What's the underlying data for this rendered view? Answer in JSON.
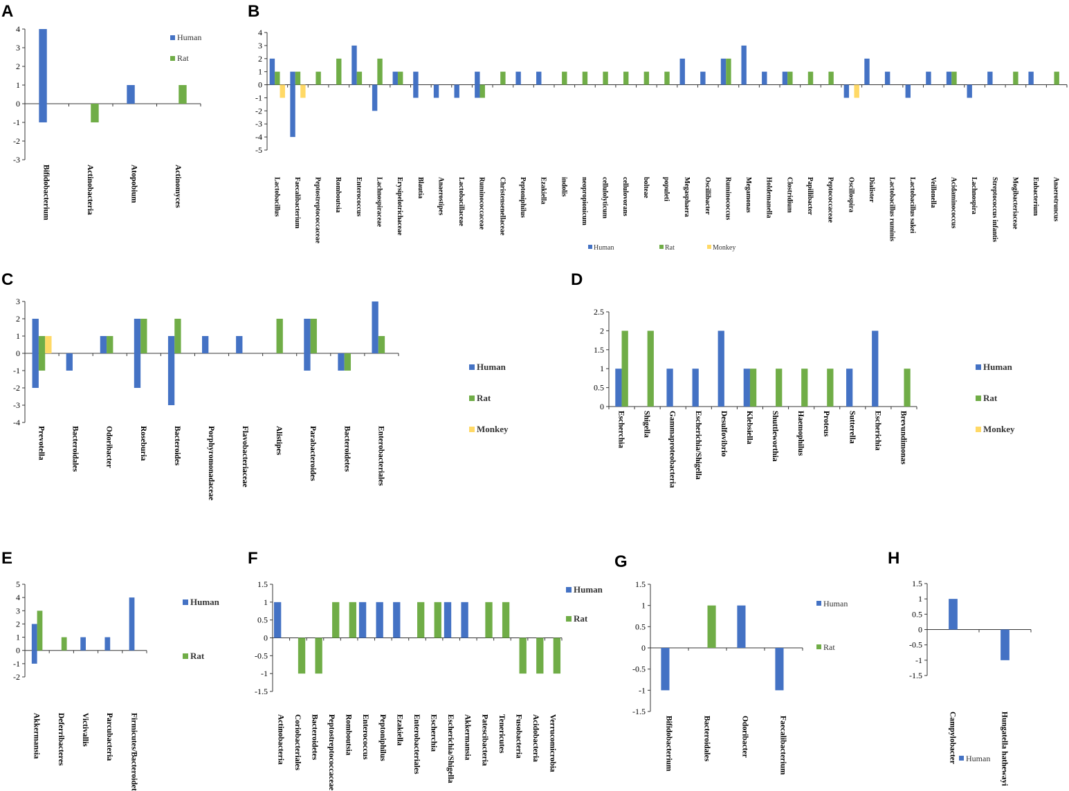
{
  "colors": {
    "human": "#4472C4",
    "rat": "#70AD47",
    "monkey": "#FFD966"
  },
  "panels": {
    "A": {
      "letter": "A",
      "legend": [
        "Human",
        "Rat"
      ]
    },
    "B": {
      "letter": "B",
      "legend": [
        "Human",
        "Rat",
        "Monkey"
      ]
    },
    "C": {
      "letter": "C",
      "legend": [
        "Human",
        "Rat",
        "Monkey"
      ]
    },
    "D": {
      "letter": "D",
      "legend": [
        "Human",
        "Rat",
        "Monkey"
      ]
    },
    "E": {
      "letter": "E",
      "legend": [
        "Human",
        "Rat"
      ]
    },
    "F": {
      "letter": "F",
      "legend": [
        "Human",
        "Rat"
      ]
    },
    "G": {
      "letter": "G",
      "legend": [
        "Human",
        "Rat"
      ]
    },
    "H": {
      "letter": "H",
      "legend": [
        "Human"
      ]
    }
  },
  "chart_data": [
    {
      "id": "A",
      "type": "bar",
      "ylim": [
        -3,
        4
      ],
      "yticks": [
        -3,
        -2,
        -1,
        0,
        1,
        2,
        3,
        4
      ],
      "categories": [
        "Bifidobacterium",
        "Actinobacteria",
        "Atopobium",
        "Actinomyces"
      ],
      "series": [
        {
          "name": "Human",
          "values": [
            [
              4,
              -1
            ],
            0,
            1,
            0
          ]
        },
        {
          "name": "Rat",
          "values": [
            0,
            -1,
            0,
            1
          ]
        }
      ]
    },
    {
      "id": "B",
      "type": "bar",
      "ylim": [
        -5,
        4
      ],
      "yticks": [
        -5,
        -4,
        -3,
        -2,
        -1,
        0,
        1,
        2,
        3,
        4
      ],
      "categories": [
        "Lactobacillus",
        "Faecalibacterium",
        "Peptostreptococcaceae",
        "Romboutsia",
        "Enterococcus",
        "Lachnospiraceae",
        "Erysipelotrichaceae",
        "Blautia",
        "Anaerostipes",
        "Lactobacillaceae",
        "Ruminococcaceae",
        "Christensenellaceae",
        "Peptoniphilus",
        "Ezakiella",
        "indolis",
        "neopropionicum",
        "cellulolyticum",
        "cellulovorans",
        "bolteae",
        "populeti",
        "Megasphaera",
        "Oscillibacter",
        "Ruminococcus",
        "Megamonas",
        "Holdemanella",
        "Clostridium",
        "Papillibacter",
        "Peptococcaceae",
        "Oscillospira",
        "Dialister",
        "Lactobacillus ruminis",
        "Lactobacillus sakei",
        "Veillonella",
        "Acidaminococcus",
        "Lachnospira",
        "Streptococcus infantis",
        "Mogibacteriaceae",
        "Eubacterium",
        "Anaerotruncus"
      ],
      "series": [
        {
          "name": "Human",
          "values": [
            2,
            [
              1,
              -4
            ],
            0,
            0,
            3,
            -2,
            1,
            [
              1,
              -1
            ],
            -1,
            -1,
            [
              1,
              -1
            ],
            0,
            1,
            1,
            0,
            0,
            0,
            0,
            0,
            0,
            2,
            1,
            2,
            3,
            1,
            1,
            0,
            0,
            -1,
            2,
            1,
            -1,
            1,
            1,
            -1,
            1,
            0,
            1,
            0
          ]
        },
        {
          "name": "Rat",
          "values": [
            1,
            1,
            1,
            2,
            1,
            2,
            1,
            0,
            0,
            0,
            -1,
            1,
            0,
            0,
            1,
            1,
            1,
            1,
            1,
            1,
            0,
            0,
            2,
            0,
            0,
            1,
            1,
            1,
            0,
            0,
            0,
            0,
            0,
            1,
            0,
            0,
            1,
            0,
            1
          ]
        },
        {
          "name": "Monkey",
          "values": [
            -1,
            -1,
            0,
            0,
            0,
            0,
            0,
            0,
            0,
            0,
            0,
            0,
            0,
            0,
            0,
            0,
            0,
            0,
            0,
            0,
            0,
            0,
            0,
            0,
            0,
            0,
            0,
            0,
            -1,
            0,
            0,
            0,
            0,
            0,
            0,
            0,
            0,
            0,
            0
          ]
        }
      ]
    },
    {
      "id": "C",
      "type": "bar",
      "ylim": [
        -4,
        3
      ],
      "yticks": [
        -4,
        -3,
        -2,
        -1,
        0,
        1,
        2,
        3
      ],
      "categories": [
        "Prevotella",
        "Bacteroidales",
        "Odoribacter",
        "Roseburia",
        "Bacteroides",
        "Porphyromonadaceae",
        "Flavobacteriaceae",
        "Alistipes",
        "Parabacteroides",
        "Bacteroidetes",
        "Enterobacteriales"
      ],
      "series": [
        {
          "name": "Human",
          "values": [
            [
              2,
              -2
            ],
            -1,
            1,
            [
              2,
              -2
            ],
            [
              1,
              -3
            ],
            1,
            1,
            0,
            [
              2,
              -1
            ],
            -1,
            3
          ]
        },
        {
          "name": "Rat",
          "values": [
            [
              1,
              -1
            ],
            0,
            1,
            2,
            2,
            0,
            0,
            2,
            2,
            -1,
            1
          ]
        },
        {
          "name": "Monkey",
          "values": [
            1,
            0,
            0,
            0,
            0,
            0,
            0,
            0,
            0,
            0,
            0
          ]
        }
      ]
    },
    {
      "id": "D",
      "type": "bar",
      "ylim": [
        0,
        2.5
      ],
      "yticks": [
        0,
        0.5,
        1,
        1.5,
        2,
        2.5
      ],
      "categories": [
        "Escherchia",
        "Shigella",
        "Gammaproteobacteria",
        "Escherichia/Shigella",
        "Desulfovibrio",
        "Klebsiella",
        "Shuttleworthia",
        "Haemophilus",
        "Proteus",
        "Sutterella",
        "Escherichia",
        "Brevundimonas"
      ],
      "series": [
        {
          "name": "Human",
          "values": [
            1,
            0,
            1,
            1,
            2,
            1,
            0,
            0,
            0,
            1,
            2,
            0
          ]
        },
        {
          "name": "Rat",
          "values": [
            2,
            2,
            0,
            0,
            0,
            1,
            1,
            1,
            1,
            0,
            0,
            1
          ]
        }
      ]
    },
    {
      "id": "E",
      "type": "bar",
      "ylim": [
        -2,
        5
      ],
      "yticks": [
        -2,
        -1,
        0,
        1,
        2,
        3,
        4,
        5
      ],
      "categories": [
        "Akkermansia",
        "Deferribacteres",
        "Victivallis",
        "Parcubacteria",
        "Firmicutes/Bacteroidetes"
      ],
      "series": [
        {
          "name": "Human",
          "values": [
            [
              2,
              -1
            ],
            0,
            1,
            1,
            4
          ]
        },
        {
          "name": "Rat",
          "values": [
            3,
            1,
            0,
            0,
            0
          ]
        }
      ]
    },
    {
      "id": "F",
      "type": "bar",
      "ylim": [
        -1.5,
        1.5
      ],
      "yticks": [
        -1.5,
        -1,
        -0.5,
        0,
        0.5,
        1,
        1.5
      ],
      "categories": [
        "Actinobacteria",
        "Coriobacteriales",
        "Bacteroidetes",
        "Peptostreptococcaceae",
        "Romboutsia",
        "Enterococcus",
        "Peptoniphilus",
        "Ezakiella",
        "Enterobacteriales",
        "Escherchia",
        "Escherichia/Shigella",
        "Akkermansia",
        "Patescibacteria",
        "Tenericutes",
        "Fusobacteria",
        "Acidobacteria",
        "Verrucomicrobia"
      ],
      "series": [
        {
          "name": "Human",
          "values": [
            1,
            0,
            0,
            0,
            0,
            1,
            1,
            1,
            0,
            0,
            1,
            1,
            0,
            0,
            0,
            0,
            0
          ]
        },
        {
          "name": "Rat",
          "values": [
            0,
            -1,
            -1,
            1,
            1,
            0,
            0,
            0,
            1,
            1,
            0,
            0,
            1,
            1,
            -1,
            -1,
            -1
          ]
        }
      ]
    },
    {
      "id": "G",
      "type": "bar",
      "ylim": [
        -1.5,
        1.5
      ],
      "yticks": [
        -1.5,
        -1,
        -0.5,
        0,
        0.5,
        1,
        1.5
      ],
      "categories": [
        "Bifidobacterium",
        "Bacteroidales",
        "Odoribacter",
        "Faecalibacterium"
      ],
      "series": [
        {
          "name": "Human",
          "values": [
            -1,
            0,
            1,
            -1
          ]
        },
        {
          "name": "Rat",
          "values": [
            0,
            1,
            0,
            0
          ]
        }
      ]
    },
    {
      "id": "H",
      "type": "bar",
      "ylim": [
        -1.5,
        1.5
      ],
      "yticks": [
        -1.5,
        -1,
        -0.5,
        0,
        0.5,
        1,
        1.5
      ],
      "categories": [
        "Campylobacter",
        "Hungatella hathewayi"
      ],
      "series": [
        {
          "name": "Human",
          "values": [
            1,
            -1
          ]
        }
      ]
    }
  ]
}
